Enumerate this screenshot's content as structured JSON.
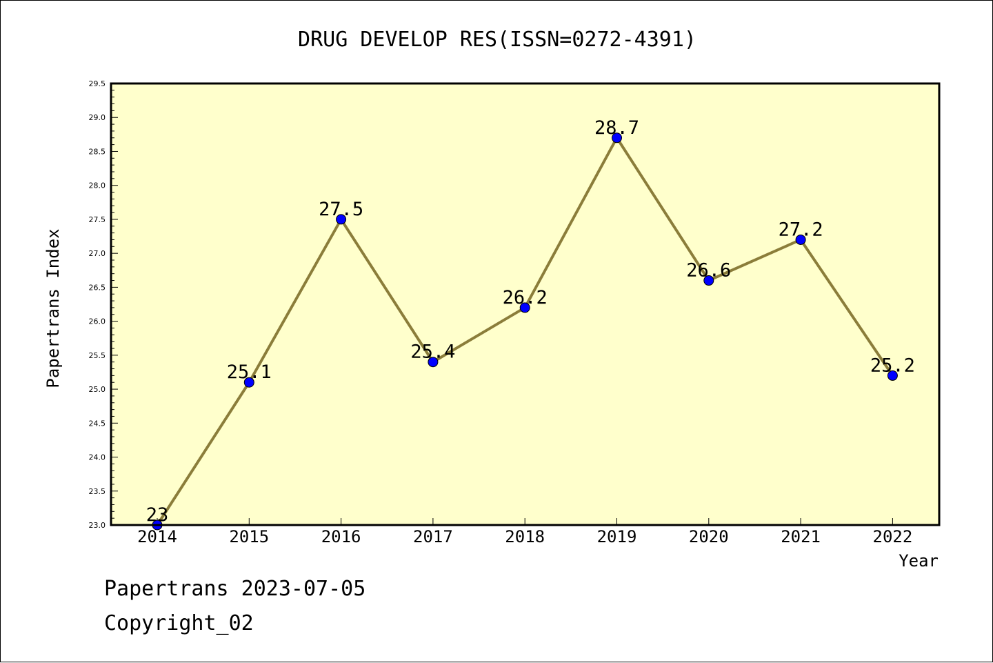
{
  "chart_data": {
    "type": "line",
    "title": "DRUG DEVELOP RES(ISSN=0272-4391)",
    "xlabel": "Year",
    "ylabel": "Papertrans Index",
    "categories": [
      "2014",
      "2015",
      "2016",
      "2017",
      "2018",
      "2019",
      "2020",
      "2021",
      "2022"
    ],
    "values": [
      23,
      25.1,
      27.5,
      25.4,
      26.2,
      28.7,
      26.6,
      27.2,
      25.2
    ],
    "data_labels": [
      "23",
      "25.1",
      "27.5",
      "25.4",
      "26.2",
      "28.7",
      "26.6",
      "27.2",
      "25.2"
    ],
    "ylim": [
      23.0,
      29.5
    ],
    "yticks": [
      "23.0",
      "23.5",
      "24.0",
      "24.5",
      "25.0",
      "25.5",
      "26.0",
      "26.5",
      "27.0",
      "27.5",
      "28.0",
      "28.5",
      "29.0",
      "29.5"
    ],
    "grid": false,
    "legend": "none",
    "colors": {
      "plot_background": "#ffffcc",
      "line": "#8b7d3a",
      "marker": "#0000ff"
    }
  },
  "footer": {
    "line1": "Papertrans 2023-07-05",
    "line2": "Copyright_02"
  }
}
